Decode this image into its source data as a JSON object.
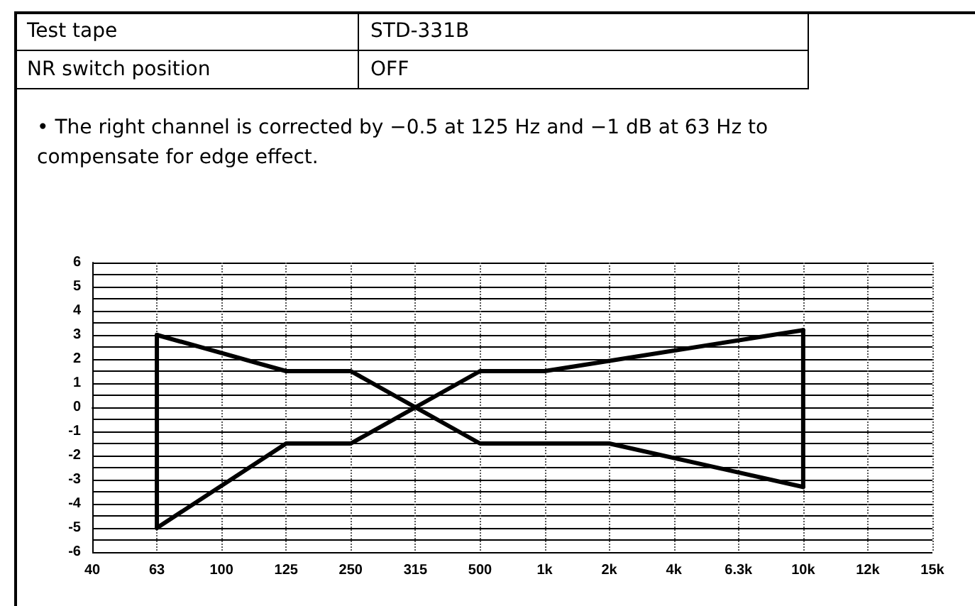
{
  "chart_data": {
    "type": "line",
    "annotations": [
      "Test tape",
      "STD-331B",
      "NR switch position",
      "OFF",
      "• The right channel is corrected by −0.5 at 125 Hz and −1 dB at 63 Hz to compensate for edge effect."
    ],
    "categories": [
      "40",
      "63",
      "100",
      "125",
      "250",
      "315",
      "500",
      "1k",
      "2k",
      "4k",
      "6.3k",
      "10k",
      "12k",
      "15k"
    ],
    "series": [
      {
        "color": "#000000",
        "x": [
          "63",
          "125",
          "250",
          "500",
          "2k",
          "10k"
        ],
        "values": [
          3,
          1.5,
          1.5,
          -1.5,
          -1.5,
          -3.3
        ]
      },
      {
        "color": "#000000",
        "x": [
          "63",
          "125",
          "250",
          "500",
          "1k",
          "10k"
        ],
        "values": [
          -5,
          -1.5,
          -1.5,
          1.5,
          1.5,
          3.2
        ]
      },
      {
        "color": "#000000",
        "x": [
          "63",
          "63"
        ],
        "values": [
          -5,
          3
        ]
      },
      {
        "color": "#000000",
        "x": [
          "10k",
          "10k"
        ],
        "values": [
          -3.3,
          3.2
        ]
      }
    ],
    "ylim": [
      -6,
      6
    ],
    "yticks": [
      -6,
      {
        "value": -5.5,
        "label": null
      },
      -5,
      {
        "value": -4.5,
        "label": null
      },
      -4,
      {
        "value": -3.5,
        "label": null
      },
      -3,
      {
        "value": -2.5,
        "label": null
      },
      -2,
      {
        "value": -1.5,
        "label": null
      },
      -1,
      {
        "value": -0.5,
        "label": null
      },
      0,
      {
        "value": 0.5,
        "label": null
      },
      1,
      {
        "value": 1.5,
        "label": null
      },
      2,
      {
        "value": 2.5,
        "label": null
      },
      3,
      {
        "value": 3.5,
        "label": null
      },
      4,
      {
        "value": 4.5,
        "label": null
      },
      5,
      {
        "value": 5.5,
        "label": null
      },
      6
    ],
    "grid": true,
    "marker": "none",
    "line_style": "solid"
  }
}
